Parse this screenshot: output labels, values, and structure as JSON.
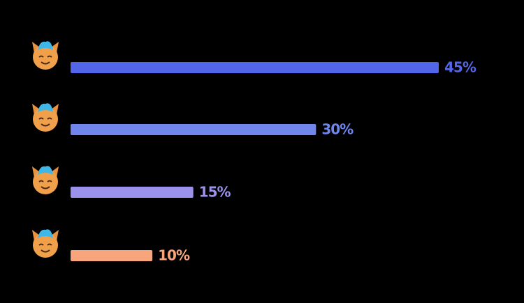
{
  "chart_data": {
    "type": "bar",
    "orientation": "horizontal",
    "categories": [
      null,
      null,
      null,
      null
    ],
    "values": [
      45,
      30,
      15,
      10
    ],
    "value_labels": [
      "45%",
      "30%",
      "15%",
      "10%"
    ],
    "colors": [
      "#5366ea",
      "#7086ec",
      "#9b92ec",
      "#f8a57c"
    ]
  }
}
